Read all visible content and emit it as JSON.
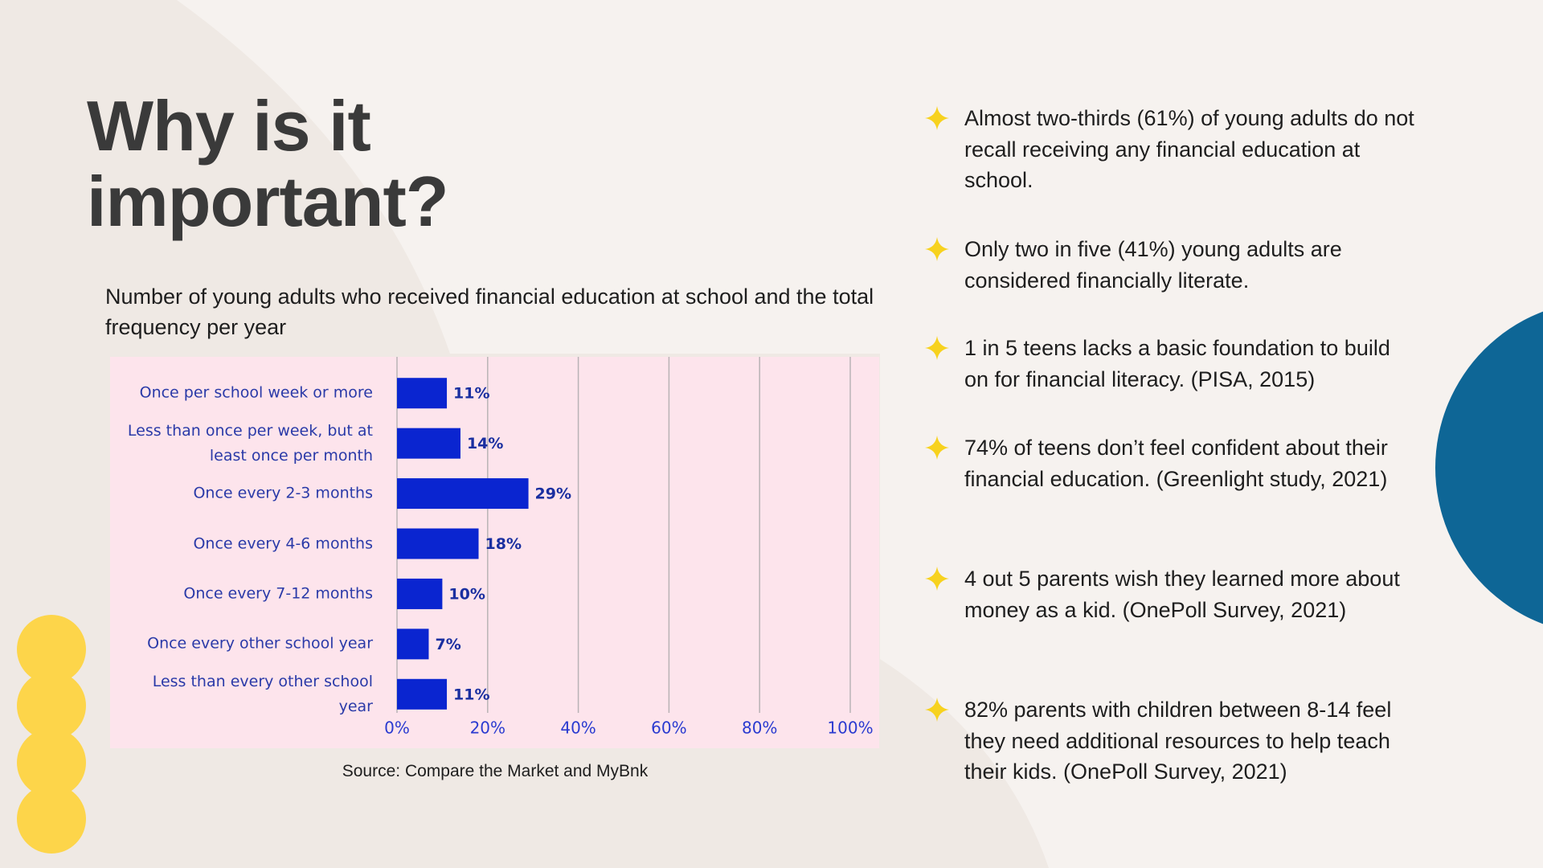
{
  "title": "Why is it important?",
  "chart_data": {
    "type": "bar",
    "orientation": "horizontal",
    "title": "Number of young adults who received financial education at school and the total frequency per year",
    "categories": [
      "Once per school week or more",
      "Less than once per week, but at least once per month",
      "Once every 2-3 months",
      "Once every 4-6 months",
      "Once every 7-12 months",
      "Once every other school year",
      "Less than every other school year"
    ],
    "values": [
      11,
      14,
      29,
      18,
      10,
      7,
      11
    ],
    "value_labels": [
      "11%",
      "14%",
      "29%",
      "18%",
      "10%",
      "7%",
      "11%"
    ],
    "color": "#0a25d0",
    "xlim": [
      0,
      100
    ],
    "xticks": [
      {
        "value": 0,
        "label": "0%"
      },
      {
        "value": 20,
        "label": "20%"
      },
      {
        "value": 40,
        "label": "40%"
      },
      {
        "value": 60,
        "label": "60%"
      },
      {
        "value": 80,
        "label": "80%"
      },
      {
        "value": 100,
        "label": "100%"
      }
    ],
    "grid": true,
    "source": "Source: Compare the Market and MyBnk"
  },
  "bullets": [
    "Almost two-thirds (61%) of young adults do not recall receiving any financial education at school.",
    "Only two in five (41%) young adults are considered financially literate.",
    "1 in 5 teens lacks a basic foundation to build on for financial literacy. (PISA, 2015)",
    "74% of teens don’t feel confident about their financial education. (Greenlight study, 2021)",
    "4 out 5 parents wish they learned more about money as a kid. (OnePoll Survey, 2021)",
    "82%  parents with children between 8-14 feel they need additional resources to help teach their kids. (OnePoll Survey, 2021)"
  ]
}
